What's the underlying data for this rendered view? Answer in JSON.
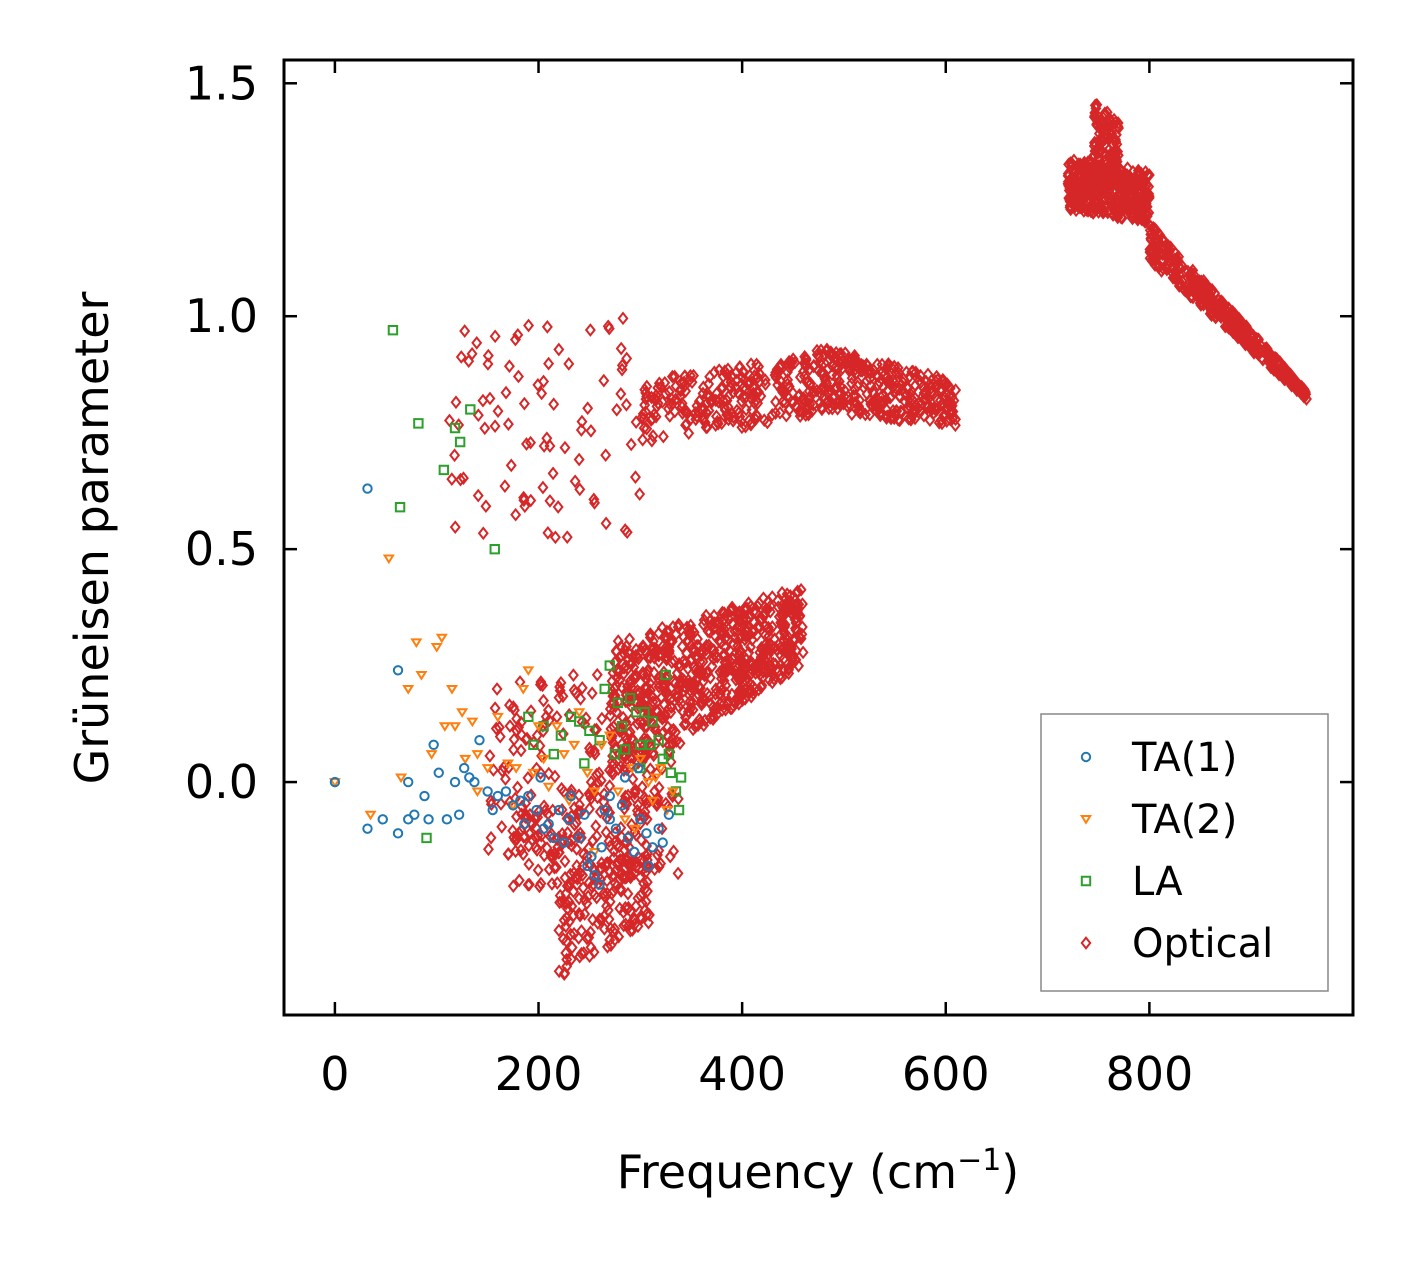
{
  "chart_data": {
    "type": "scatter",
    "title": "",
    "xlabel": "Frequency (cm",
    "xlabel_sup": "−1",
    "xlabel_end": ")",
    "ylabel": "Grüneisen parameter",
    "xlim": [
      -50,
      1000
    ],
    "ylim": [
      -0.5,
      1.55
    ],
    "xticks": [
      0,
      200,
      400,
      600,
      800
    ],
    "yticks": [
      0.0,
      0.5,
      1.0,
      1.5
    ],
    "xtick_labels": [
      "0",
      "200",
      "400",
      "600",
      "800"
    ],
    "ytick_labels": [
      "0.0",
      "0.5",
      "1.0",
      "1.5"
    ],
    "legend_position": "lower-right",
    "series": [
      {
        "name": "TA(1)",
        "marker": "circle",
        "color": "#1f77b4",
        "points": [
          [
            0,
            0.0
          ],
          [
            32,
            0.63
          ],
          [
            32,
            -0.1
          ],
          [
            47,
            -0.08
          ],
          [
            62,
            0.24
          ],
          [
            62,
            -0.11
          ],
          [
            72,
            0.0
          ],
          [
            72,
            -0.08
          ],
          [
            78,
            -0.07
          ],
          [
            88,
            -0.03
          ],
          [
            92,
            -0.08
          ],
          [
            97,
            0.08
          ],
          [
            102,
            0.02
          ],
          [
            110,
            -0.08
          ],
          [
            118,
            0.0
          ],
          [
            122,
            -0.07
          ],
          [
            127,
            0.03
          ],
          [
            132,
            0.01
          ],
          [
            137,
            0.0
          ],
          [
            142,
            0.09
          ],
          [
            150,
            -0.02
          ],
          [
            155,
            -0.06
          ],
          [
            160,
            -0.03
          ],
          [
            168,
            -0.02
          ],
          [
            175,
            -0.05
          ],
          [
            182,
            -0.04
          ],
          [
            190,
            -0.03
          ],
          [
            198,
            -0.06
          ],
          [
            202,
            0.01
          ],
          [
            210,
            -0.09
          ],
          [
            215,
            -0.12
          ],
          [
            220,
            -0.06
          ],
          [
            225,
            -0.13
          ],
          [
            232,
            -0.03
          ],
          [
            240,
            -0.12
          ],
          [
            248,
            -0.18
          ],
          [
            255,
            -0.2
          ],
          [
            260,
            -0.22
          ],
          [
            265,
            -0.06
          ],
          [
            270,
            -0.08
          ],
          [
            276,
            -0.1
          ],
          [
            282,
            -0.05
          ],
          [
            288,
            -0.12
          ],
          [
            294,
            -0.15
          ],
          [
            300,
            -0.08
          ],
          [
            306,
            -0.11
          ],
          [
            312,
            -0.14
          ],
          [
            318,
            -0.1
          ],
          [
            322,
            -0.13
          ],
          [
            328,
            -0.07
          ],
          [
            298,
            0.03
          ],
          [
            285,
            0.01
          ],
          [
            270,
            -0.03
          ],
          [
            262,
            -0.14
          ],
          [
            245,
            -0.07
          ],
          [
            230,
            -0.08
          ],
          [
            186,
            -0.09
          ],
          [
            205,
            -0.1
          ],
          [
            252,
            -0.16
          ],
          [
            308,
            -0.18
          ]
        ]
      },
      {
        "name": "TA(2)",
        "marker": "triangle-down",
        "color": "#ff7f0e",
        "points": [
          [
            0,
            0.0
          ],
          [
            35,
            -0.07
          ],
          [
            53,
            0.48
          ],
          [
            65,
            0.01
          ],
          [
            72,
            0.2
          ],
          [
            80,
            0.3
          ],
          [
            85,
            0.23
          ],
          [
            95,
            0.06
          ],
          [
            100,
            0.29
          ],
          [
            105,
            0.31
          ],
          [
            108,
            0.12
          ],
          [
            115,
            0.2
          ],
          [
            118,
            0.12
          ],
          [
            125,
            0.15
          ],
          [
            128,
            0.05
          ],
          [
            135,
            0.13
          ],
          [
            140,
            0.06
          ],
          [
            150,
            0.03
          ],
          [
            160,
            0.14
          ],
          [
            170,
            0.04
          ],
          [
            178,
            0.03
          ],
          [
            185,
            0.2
          ],
          [
            190,
            0.24
          ],
          [
            195,
            0.02
          ],
          [
            200,
            0.12
          ],
          [
            210,
            -0.01
          ],
          [
            218,
            0.12
          ],
          [
            225,
            0.06
          ],
          [
            235,
            0.08
          ],
          [
            240,
            0.15
          ],
          [
            248,
            0.02
          ],
          [
            255,
            -0.02
          ],
          [
            262,
            0.08
          ],
          [
            270,
            0.1
          ],
          [
            278,
            -0.02
          ],
          [
            285,
            -0.08
          ],
          [
            292,
            0.03
          ],
          [
            300,
            0.05
          ],
          [
            308,
            0.0
          ],
          [
            312,
            -0.04
          ],
          [
            320,
            0.03
          ],
          [
            326,
            -0.06
          ],
          [
            332,
            -0.02
          ],
          [
            255,
            -0.15
          ],
          [
            230,
            -0.04
          ],
          [
            205,
            0.05
          ],
          [
            175,
            -0.05
          ],
          [
            140,
            -0.02
          ],
          [
            295,
            -0.1
          ],
          [
            315,
            0.01
          ]
        ]
      },
      {
        "name": "LA",
        "marker": "square",
        "color": "#2ca02c",
        "points": [
          [
            57,
            0.97
          ],
          [
            64,
            0.59
          ],
          [
            82,
            0.77
          ],
          [
            90,
            -0.12
          ],
          [
            107,
            0.67
          ],
          [
            118,
            0.76
          ],
          [
            123,
            0.73
          ],
          [
            133,
            0.8
          ],
          [
            157,
            0.5
          ],
          [
            190,
            0.14
          ],
          [
            195,
            0.08
          ],
          [
            205,
            0.12
          ],
          [
            215,
            0.06
          ],
          [
            222,
            0.1
          ],
          [
            232,
            0.14
          ],
          [
            240,
            0.13
          ],
          [
            250,
            0.11
          ],
          [
            265,
            0.2
          ],
          [
            270,
            0.25
          ],
          [
            278,
            0.17
          ],
          [
            282,
            0.12
          ],
          [
            290,
            0.18
          ],
          [
            296,
            0.15
          ],
          [
            300,
            0.08
          ],
          [
            304,
            0.15
          ],
          [
            312,
            0.13
          ],
          [
            318,
            0.09
          ],
          [
            322,
            0.05
          ],
          [
            325,
            0.23
          ],
          [
            330,
            0.02
          ],
          [
            335,
            -0.02
          ],
          [
            338,
            -0.06
          ],
          [
            340,
            0.01
          ],
          [
            275,
            0.06
          ],
          [
            260,
            0.09
          ],
          [
            245,
            0.04
          ],
          [
            310,
            0.08
          ],
          [
            328,
            0.06
          ],
          [
            300,
            0.03
          ],
          [
            285,
            0.07
          ]
        ]
      },
      {
        "name": "Optical",
        "marker": "diamond",
        "color": "#d62728",
        "points": []
      }
    ],
    "optical_generated_regions": [
      {
        "x": [
          270,
          460
        ],
        "y_low_at_x0": 0.0,
        "y_low_at_x1": 0.25,
        "y_high_at_x0": 0.3,
        "y_high_at_x1": 0.42,
        "n": 700
      },
      {
        "x": [
          150,
          340
        ],
        "y_low_at_x0": -0.15,
        "y_low_at_x1": -0.2,
        "y_high_at_x0": 0.2,
        "y_high_at_x1": 0.3,
        "n": 220
      },
      {
        "x": [
          175,
          320
        ],
        "y_low_at_x0": -0.25,
        "y_low_at_x1": -0.2,
        "y_high_at_x0": -0.05,
        "y_high_at_x1": 0.0,
        "n": 120
      },
      {
        "x": [
          220,
          310
        ],
        "y_low_at_x0": -0.42,
        "y_low_at_x1": -0.3,
        "y_high_at_x0": -0.2,
        "y_high_at_x1": -0.15,
        "n": 160
      },
      {
        "x": [
          300,
          470
        ],
        "y_low_at_x0": 0.72,
        "y_low_at_x1": 0.79,
        "y_high_at_x0": 0.86,
        "y_high_at_x1": 0.92,
        "n": 260
      },
      {
        "x": [
          470,
          610
        ],
        "y_low_at_x0": 0.8,
        "y_low_at_x1": 0.76,
        "y_high_at_x0": 0.94,
        "y_high_at_x1": 0.86,
        "n": 320
      },
      {
        "x": [
          110,
          300
        ],
        "y_low_at_x0": 0.5,
        "y_low_at_x1": 0.52,
        "y_high_at_x0": 0.98,
        "y_high_at_x1": 1.0,
        "n": 90
      },
      {
        "x": [
          720,
          800
        ],
        "y_low_at_x0": 1.23,
        "y_low_at_x1": 1.2,
        "y_high_at_x0": 1.34,
        "y_high_at_x1": 1.31,
        "n": 420
      },
      {
        "x": [
          745,
          770
        ],
        "y_low_at_x0": 1.3,
        "y_low_at_x1": 1.28,
        "y_high_at_x0": 1.46,
        "y_high_at_x1": 1.42,
        "n": 120
      },
      {
        "x": [
          800,
          955
        ],
        "y_low_at_x0": 1.12,
        "y_low_at_x1": 0.82,
        "y_high_at_x0": 1.2,
        "y_high_at_x1": 0.84,
        "n": 420
      }
    ]
  }
}
